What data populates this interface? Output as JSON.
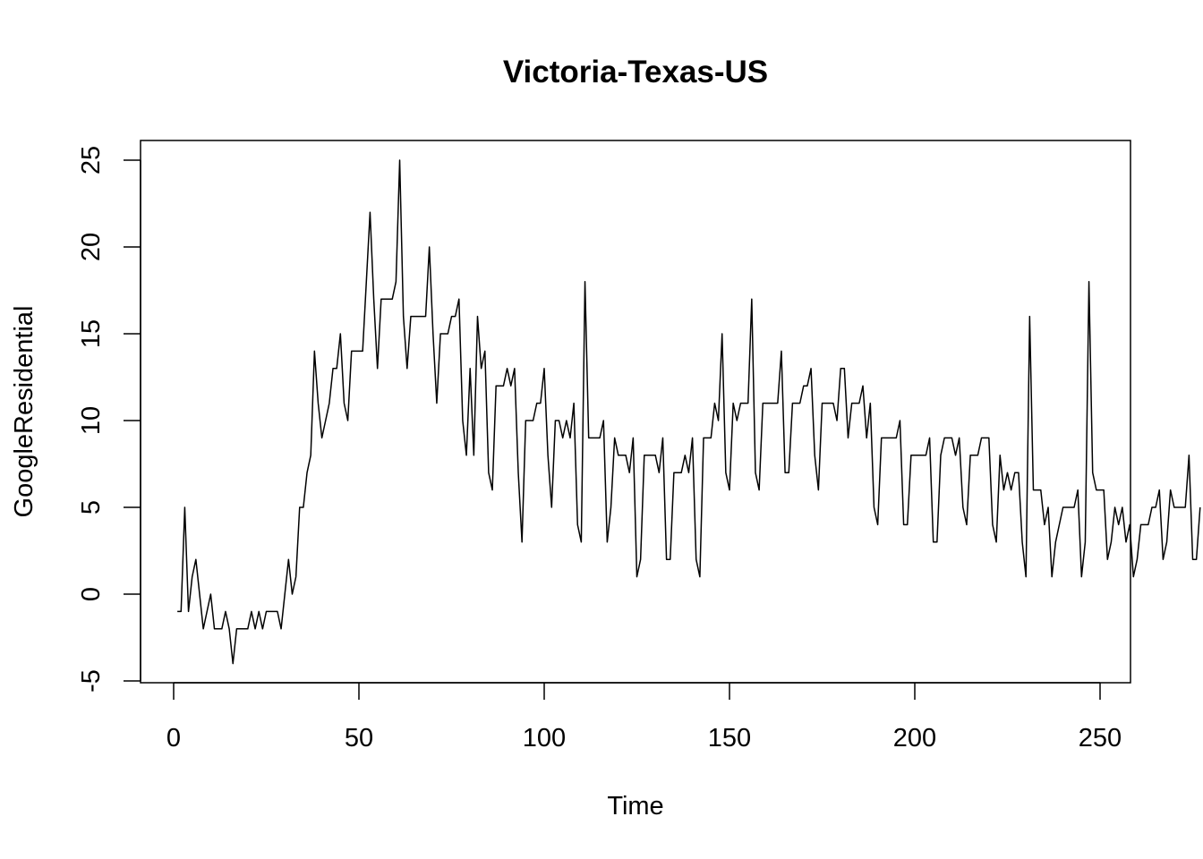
{
  "chart_data": {
    "type": "line",
    "title": "Victoria-Texas-US",
    "xlabel": "Time",
    "ylabel": "GoogleResidential",
    "xlim": [
      1,
      248
    ],
    "ylim": [
      -4,
      25
    ],
    "xticks": [
      0,
      50,
      100,
      150,
      200,
      250
    ],
    "yticks": [
      -5,
      0,
      5,
      10,
      15,
      20,
      25
    ],
    "grid": false,
    "series": [
      {
        "values": [
          -1,
          -1,
          5,
          -1,
          1,
          2,
          0,
          -2,
          -1,
          0,
          -2,
          -2,
          -2,
          -1,
          -2,
          -4,
          -2,
          -2,
          -2,
          -2,
          -1,
          -2,
          -1,
          -2,
          -1,
          -1,
          -1,
          -1,
          -2,
          0,
          2,
          0,
          1,
          5,
          5,
          7,
          8,
          14,
          11,
          9,
          10,
          11,
          13,
          13,
          15,
          11,
          10,
          14,
          14,
          14,
          14,
          18,
          22,
          17,
          13,
          17,
          17,
          17,
          17,
          18,
          25,
          16,
          13,
          16,
          16,
          16,
          16,
          16,
          20,
          15,
          11,
          15,
          15,
          15,
          16,
          16,
          17,
          10,
          8,
          13,
          8,
          16,
          13,
          14,
          7,
          6,
          12,
          12,
          12,
          13,
          12,
          13,
          7,
          3,
          10,
          10,
          10,
          11,
          11,
          13,
          8,
          5,
          10,
          10,
          9,
          10,
          9,
          11,
          4,
          3,
          18,
          9,
          9,
          9,
          9,
          10,
          3,
          5,
          9,
          8,
          8,
          8,
          7,
          9,
          1,
          2,
          8,
          8,
          8,
          8,
          7,
          9,
          2,
          2,
          7,
          7,
          7,
          8,
          7,
          9,
          2,
          1,
          9,
          9,
          9,
          11,
          10,
          15,
          7,
          6,
          11,
          10,
          11,
          11,
          11,
          17,
          7,
          6,
          11,
          11,
          11,
          11,
          11,
          14,
          7,
          7,
          11,
          11,
          11,
          12,
          12,
          13,
          8,
          6,
          11,
          11,
          11,
          11,
          10,
          13,
          13,
          9,
          11,
          11,
          11,
          12,
          9,
          11,
          5,
          4,
          9,
          9,
          9,
          9,
          9,
          10,
          4,
          4,
          8,
          8,
          8,
          8,
          8,
          9,
          3,
          3,
          8,
          9,
          9,
          9,
          8,
          9,
          5,
          4,
          8,
          8,
          8,
          9,
          9,
          9,
          4,
          3,
          8,
          6,
          7,
          6,
          7,
          7,
          3,
          1,
          16,
          6,
          6,
          6,
          4,
          5,
          1,
          3,
          4,
          5,
          5,
          5,
          5,
          6,
          1,
          3,
          18,
          7,
          6,
          6,
          6,
          2,
          3,
          5,
          4,
          5,
          3,
          4,
          1,
          2,
          4,
          4,
          4,
          5,
          5,
          6,
          2,
          3,
          6,
          5,
          5,
          5,
          5,
          8,
          2,
          2,
          5
        ]
      }
    ]
  }
}
